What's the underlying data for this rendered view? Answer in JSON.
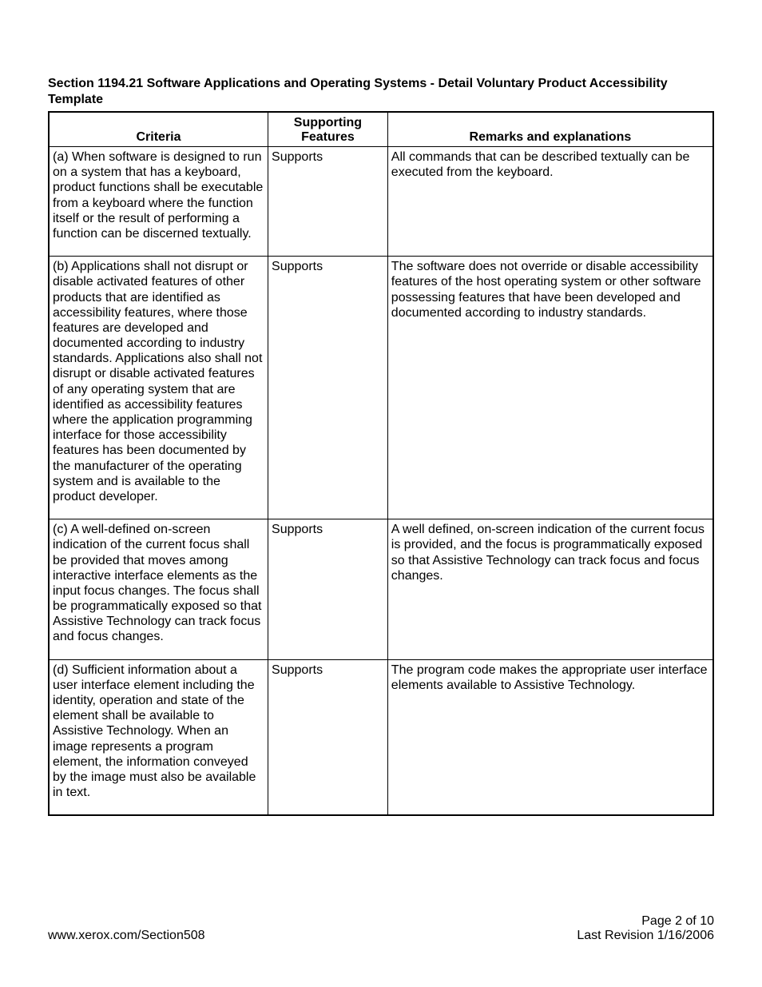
{
  "title": "Section 1194.21 Software Applications and Operating Systems - Detail Voluntary Product Accessibility Template",
  "table": {
    "columns": [
      "Criteria",
      "Supporting Features",
      "Remarks and explanations"
    ],
    "rows": [
      {
        "criteria": "(a) When software is designed to run on a system that has a keyboard, product functions shall be executable from a keyboard where the function itself or the result of performing a function can be discerned textually.",
        "support": "Supports",
        "remarks": "All commands that can be described textually can be executed from the keyboard."
      },
      {
        "criteria": "(b) Applications shall not disrupt or disable activated features of other products that are identified as accessibility features, where those features are developed and documented according to industry standards. Applications also shall not disrupt or disable activated features of any operating system that are identified as accessibility features where the application programming interface for those accessibility features has been documented by the manufacturer of the operating system and is available to the product developer.",
        "support": "Supports",
        "remarks": "The software does not override or disable accessibility features of the host operating system or other software possessing features that have been developed and documented according to industry standards."
      },
      {
        "criteria": "(c) A well-defined on-screen indication of the current focus shall be provided that moves among interactive interface elements as the input focus changes. The focus shall be programmatically exposed so that Assistive Technology can track focus and focus changes.",
        "support": "Supports",
        "remarks": "A well defined, on-screen indication of the current focus is provided, and the focus is programmatically exposed so that Assistive Technology can track focus and focus changes."
      },
      {
        "criteria": "(d) Sufficient information about a user interface element including the identity, operation and state of the element shall be available to Assistive Technology. When an image represents a program element, the information conveyed by the image must also be available in text.",
        "support": "Supports",
        "remarks": "The program code makes the appropriate user interface elements available to Assistive Technology."
      }
    ]
  },
  "footer": {
    "url": "www.xerox.com/Section508",
    "page": "Page 2 of 10",
    "revision": "Last Revision 1/16/2006"
  }
}
